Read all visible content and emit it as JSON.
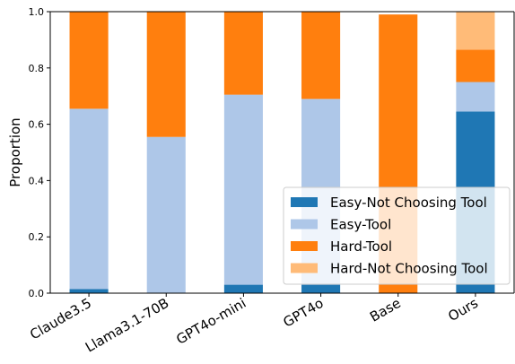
{
  "chart_data": {
    "type": "bar",
    "stacked": true,
    "title": "",
    "xlabel": "",
    "ylabel": "Proportion",
    "ylim": [
      0,
      1
    ],
    "yticks": [
      "0.0",
      "0.2",
      "0.4",
      "0.6",
      "0.8",
      "1.0"
    ],
    "categories": [
      "Claude3.5",
      "Llama3.1-70B",
      "GPT4o-mini",
      "GPT4o",
      "Base",
      "Ours"
    ],
    "series": [
      {
        "name": "Easy-Not Choosing Tool",
        "color": "#1f77b4",
        "values": [
          0.015,
          0.0,
          0.03,
          0.03,
          0.0,
          0.645
        ]
      },
      {
        "name": "Easy-Tool",
        "color": "#aec7e8",
        "values": [
          0.64,
          0.555,
          0.675,
          0.66,
          0.0,
          0.105
        ]
      },
      {
        "name": "Hard-Tool",
        "color": "#ff7f0e",
        "values": [
          0.345,
          0.445,
          0.295,
          0.31,
          0.99,
          0.115
        ]
      },
      {
        "name": "Hard-Not Choosing Tool",
        "color": "#ffbb78",
        "values": [
          0.0,
          0.0,
          0.0,
          0.0,
          0.0,
          0.135
        ]
      }
    ],
    "grid": false,
    "legend_position": "lower-right"
  }
}
